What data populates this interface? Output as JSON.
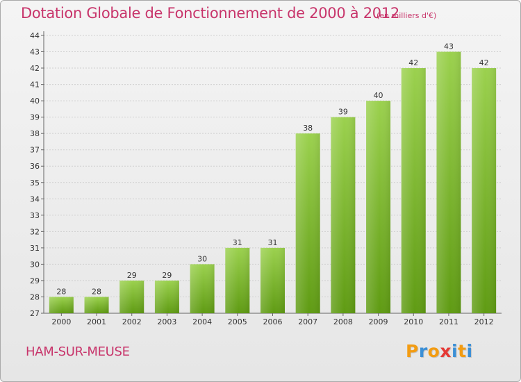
{
  "header": {
    "title": "Dotation Globale de Fonctionnement de 2000 à 2012",
    "subtitle": "(en milliers d'€)"
  },
  "footer": {
    "commune": "HAM-SUR-MEUSE",
    "logo_text": "Proxiti",
    "logo_colors": [
      "#f39c12",
      "#3b8fd6",
      "#f39c12",
      "#e53935",
      "#3b8fd6",
      "#f39c12",
      "#3b8fd6"
    ]
  },
  "colors": {
    "title": "#c8356b",
    "bar_top": "#9bd14e",
    "bar_bottom": "#5f9b13",
    "grid": "#cfcfcf",
    "axis_text": "#333333"
  },
  "chart_data": {
    "type": "bar",
    "categories": [
      "2000",
      "2001",
      "2002",
      "2003",
      "2004",
      "2005",
      "2006",
      "2007",
      "2008",
      "2009",
      "2010",
      "2011",
      "2012"
    ],
    "values": [
      28,
      28,
      29,
      29,
      30,
      31,
      31,
      38,
      39,
      40,
      42,
      43,
      42
    ],
    "ylim": [
      27,
      44
    ],
    "yticks": [
      27,
      28,
      29,
      30,
      31,
      32,
      33,
      34,
      35,
      36,
      37,
      38,
      39,
      40,
      41,
      42,
      43,
      44
    ],
    "grid": true
  }
}
